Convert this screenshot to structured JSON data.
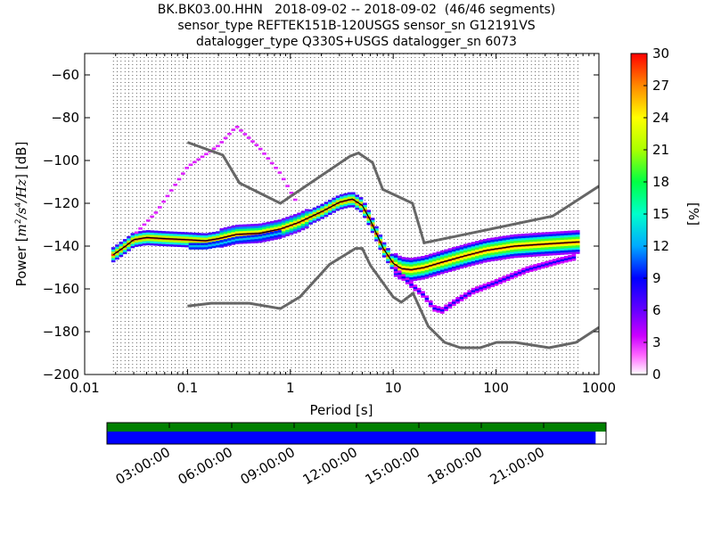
{
  "title": {
    "line1": "BK.BK03.00.HHN   2018-09-02 -- 2018-09-02  (46/46 segments)",
    "line2": "sensor_type REFTEK151B-120USGS sensor_sn G12191VS",
    "line3": "datalogger_type Q330S+USGS datalogger_sn 6073"
  },
  "chart_data": {
    "type": "heatmap",
    "xlabel": "Period [s]",
    "ylabel": "Power [m²/s⁴/Hz] [dB]",
    "ylabel_parts": {
      "prefix": "Power [",
      "m": "m",
      "two": "2",
      "s": "/s",
      "four": "4",
      "hz": "/Hz",
      "suffix": "] [dB]"
    },
    "x_scale": "log",
    "xlim": [
      0.01,
      1000
    ],
    "ylim": [
      -200,
      -50
    ],
    "xticks": [
      0.01,
      0.1,
      1,
      10,
      100,
      1000
    ],
    "xtick_labels": [
      "0.01",
      "0.1",
      "1",
      "10",
      "100",
      "1000"
    ],
    "yticks": [
      -200,
      -180,
      -160,
      -140,
      -120,
      -100,
      -80,
      -60
    ],
    "ytick_labels": [
      "−200",
      "−180",
      "−160",
      "−140",
      "−120",
      "−100",
      "−80",
      "−60"
    ],
    "grid": "dotted vertical lines at period bin centers",
    "colorbar": {
      "label": "[%]",
      "range": [
        0,
        30
      ],
      "ticks": [
        "0",
        "3",
        "6",
        "9",
        "12",
        "15",
        "18",
        "21",
        "24",
        "27",
        "30"
      ],
      "colormap": "pqlx"
    },
    "noise_models": {
      "nhnm": {
        "period": [
          0.1,
          0.22,
          0.32,
          0.8,
          3.8,
          4.6,
          6.3,
          7.9,
          15.4,
          20,
          354.8,
          1000
        ],
        "db": [
          -91.5,
          -97.4,
          -110.5,
          -120,
          -98,
          -96.5,
          -101,
          -113.5,
          -120,
          -138.5,
          -126,
          -112
        ]
      },
      "nlnm": {
        "period": [
          0.1,
          0.17,
          0.4,
          0.8,
          1.24,
          2.4,
          4.3,
          5,
          6,
          10,
          12,
          15.6,
          21.9,
          31.6,
          45,
          70,
          101,
          154,
          328,
          600,
          1000
        ],
        "db": [
          -168,
          -166.7,
          -166.7,
          -169.2,
          -163.7,
          -148.6,
          -141.1,
          -141.1,
          -149,
          -163.8,
          -166.2,
          -162.1,
          -177.5,
          -185,
          -187.5,
          -187.5,
          -185,
          -185,
          -187.5,
          -185,
          -178
        ]
      }
    },
    "psd_traces": {
      "ridge": {
        "period": [
          0.019,
          0.025,
          0.03,
          0.04,
          0.06,
          0.1,
          0.15,
          0.2,
          0.3,
          0.5,
          0.8,
          1.2,
          2,
          3,
          4,
          5,
          6,
          7,
          8,
          10,
          12,
          15,
          20,
          30,
          50,
          80,
          150,
          300,
          650
        ],
        "db": [
          -144,
          -140,
          -137,
          -136,
          -136.5,
          -137,
          -137.5,
          -136.5,
          -134.5,
          -134,
          -132,
          -129,
          -124,
          -119.5,
          -118,
          -121,
          -128,
          -135,
          -141,
          -148,
          -150.5,
          -151,
          -150,
          -147.5,
          -144.5,
          -142,
          -140,
          -139,
          -138
        ]
      },
      "upper_sparse": {
        "period": [
          0.03,
          0.05,
          0.1,
          0.2,
          0.3,
          0.5,
          0.8,
          1.2
        ],
        "db": [
          -135,
          -124,
          -103,
          -93,
          -84,
          -94,
          -106,
          -121
        ]
      },
      "lower_branch": {
        "period": [
          10,
          15,
          20,
          25,
          30,
          40,
          60,
          100,
          200,
          400,
          600
        ],
        "db": [
          -150,
          -158,
          -163,
          -169,
          -170,
          -166,
          -161,
          -157,
          -151,
          -147,
          -145
        ]
      },
      "dense_shoulder": {
        "period": [
          0.1,
          0.15,
          0.2,
          0.3,
          0.5,
          0.8
        ],
        "db": [
          -140,
          -140,
          -139,
          -137,
          -136,
          -134
        ]
      }
    },
    "timeline": {
      "tick_labels": [
        "03:00:00",
        "06:00:00",
        "09:00:00",
        "12:00:00",
        "15:00:00",
        "18:00:00",
        "21:00:00"
      ],
      "tick_hours": [
        3,
        6,
        9,
        12,
        15,
        18,
        21
      ],
      "range_hours": [
        0,
        24
      ],
      "data_coverage_end_hours": 23.5,
      "colors": {
        "available": "#008000",
        "used": "#0000ff"
      }
    }
  }
}
